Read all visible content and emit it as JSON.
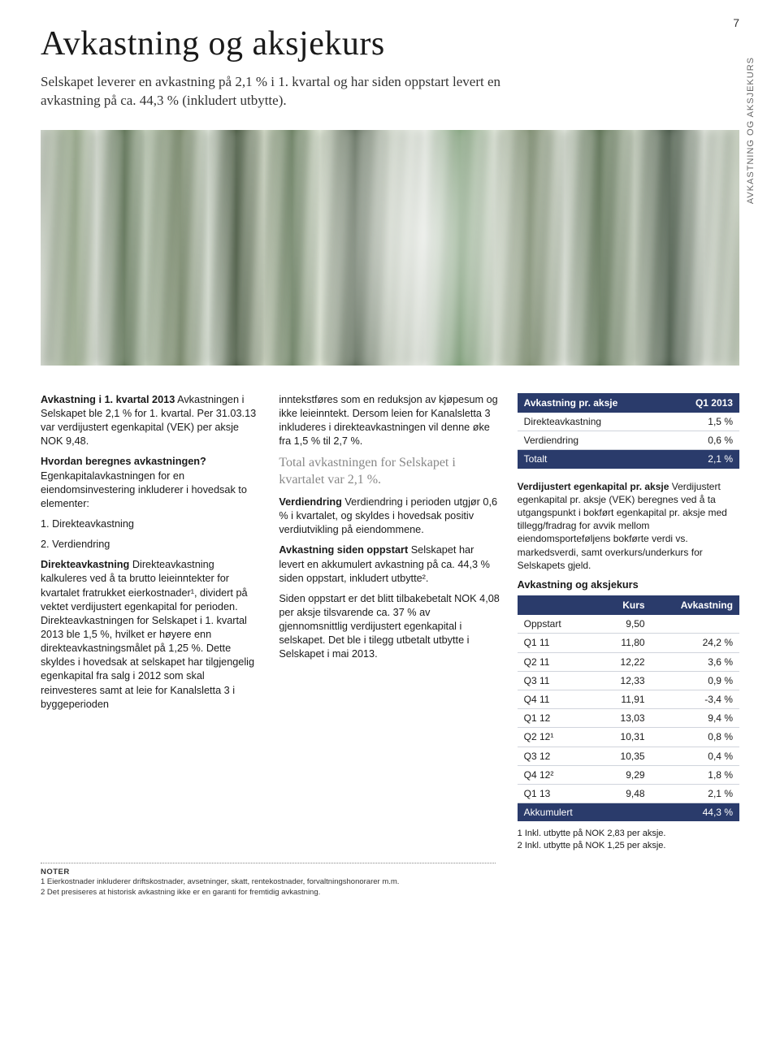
{
  "page_number": "7",
  "side_label": "AVKASTNING OG AKSJEKURS",
  "title": "Avkastning og aksjekurs",
  "lead": "Selskapet leverer en avkastning på 2,1 % i 1. kvartal og har siden oppstart levert en avkastning på ca. 44,3 % (inkludert utbytte).",
  "col1": {
    "p1_bold": "Avkastning i 1. kvartal 2013",
    "p1": "Avkastningen i Selskapet ble 2,1 % for 1. kvartal. Per 31.03.13 var verdijustert egenkapital (VEK) per aksje NOK 9,48.",
    "p2_bold": "Hvordan beregnes avkastningen?",
    "p2": "Egenkapitalavkastningen for en eiendomsinvestering inkluderer i hovedsak to elementer:",
    "li1": "1. Direkteavkastning",
    "li2": "2. Verdiendring",
    "p3_bold": "Direkteavkastning",
    "p3": "Direkteavkastning kalkuleres ved å ta brutto leieinntekter for kvartalet fratrukket eierkostnader¹, dividert på vektet verdijustert egenkapital for perioden. Direkteavkastningen for Selskapet i 1. kvartal 2013 ble 1,5 %, hvilket er høyere enn direkteavkastningsmålet på 1,25 %. Dette skyldes i hovedsak at selskapet har tilgjengelig egenkapital fra salg i 2012 som skal reinvesteres samt at leie for Kanalsletta 3 i byggeperioden"
  },
  "col2": {
    "p1": "inntekstføres som en reduksjon av kjøpesum og ikke leieinntekt. Dersom leien for Kanalsletta 3 inkluderes i direkteavkastningen vil denne øke fra 1,5 % til 2,7 %.",
    "highlight": "Total avkastningen for Selskapet i kvartalet var 2,1 %.",
    "p2_bold": "Verdiendring",
    "p2": "Verdiendring i perioden utgjør 0,6 % i kvartalet, og skyldes i hovedsak positiv verdiutvikling på eiendommene.",
    "p3_bold": "Avkastning siden oppstart",
    "p3": "Selskapet har levert en akkumulert avkastning på ca. 44,3 % siden oppstart, inkludert utbytte².",
    "p4": "Siden oppstart er det blitt tilbakebetalt NOK 4,08 per aksje tilsvarende ca. 37 % av gjennomsnittlig verdijustert egenkapital i selskapet. Det ble i tilegg utbetalt utbytte i Selskapet i mai 2013."
  },
  "table1": {
    "header_left": "Avkastning pr. aksje",
    "header_right": "Q1 2013",
    "rows": [
      {
        "label": "Direkteavkastning",
        "value": "1,5 %"
      },
      {
        "label": "Verdiendring",
        "value": "0,6 %"
      }
    ],
    "total_label": "Totalt",
    "total_value": "2,1 %"
  },
  "col3": {
    "cap_bold": "Verdijustert egenkapital pr. aksje",
    "cap": "Verdijustert egenkapital pr. aksje (VEK) beregnes ved å ta utgangspunkt i bokført egenkapital pr. aksje med tillegg/fradrag for avvik mellom eiendomsporteføljens bokførte verdi vs. markedsverdi, samt overkurs/underkurs for Selskapets gjeld.",
    "tbl2_title": "Avkastning og aksjekurs"
  },
  "table2": {
    "h1": "",
    "h2": "Kurs",
    "h3": "Avkastning",
    "rows": [
      {
        "c1": "Oppstart",
        "c2": "9,50",
        "c3": ""
      },
      {
        "c1": "Q1 11",
        "c2": "11,80",
        "c3": "24,2 %"
      },
      {
        "c1": "Q2 11",
        "c2": "12,22",
        "c3": "3,6 %"
      },
      {
        "c1": "Q3 11",
        "c2": "12,33",
        "c3": "0,9 %"
      },
      {
        "c1": "Q4 11",
        "c2": "11,91",
        "c3": "-3,4 %"
      },
      {
        "c1": "Q1 12",
        "c2": "13,03",
        "c3": "9,4 %"
      },
      {
        "c1": "Q2 12¹",
        "c2": "10,31",
        "c3": "0,8 %"
      },
      {
        "c1": "Q3 12",
        "c2": "10,35",
        "c3": "0,4 %"
      },
      {
        "c1": "Q4 12²",
        "c2": "9,29",
        "c3": "1,8 %"
      },
      {
        "c1": "Q1 13",
        "c2": "9,48",
        "c3": "2,1 %"
      }
    ],
    "akkum_label": "Akkumulert",
    "akkum_value": "44,3 %",
    "note1": "1 Inkl. utbytte på NOK 2,83 per aksje.",
    "note2": "2 Inkl. utbytte på NOK 1,25 per aksje."
  },
  "footnotes": {
    "title": "NOTER",
    "n1": "1 Eierkostnader inkluderer driftskostnader, avsetninger, skatt, rentekostnader, forvaltningshonorarer m.m.",
    "n2": "2 Det presiseres at historisk avkastning ikke er en garanti for fremtidig avkastning."
  },
  "colors": {
    "table_header_bg": "#2a3b6b",
    "table_header_fg": "#ffffff",
    "row_border": "#d0d4dc",
    "highlight_text": "#888888"
  }
}
